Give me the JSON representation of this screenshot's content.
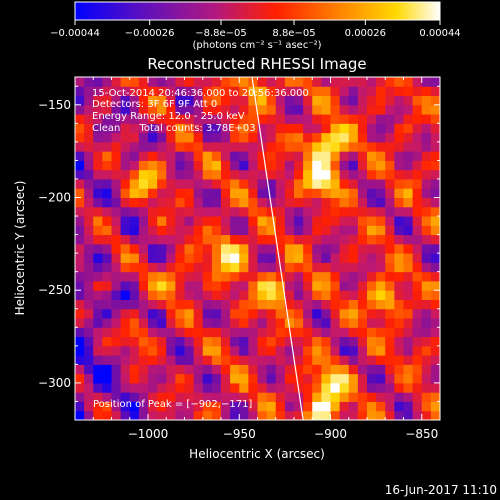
{
  "chart_data": {
    "type": "heatmap",
    "title": "Reconstructed RHESSI Image",
    "xlabel": "Heliocentric X (arcsec)",
    "ylabel": "Heliocentric Y (arcsec)",
    "xlim": [
      -1040,
      -840
    ],
    "ylim": [
      -320,
      -135
    ],
    "x_ticks": [
      -1000,
      -950,
      -900,
      -850
    ],
    "x_tick_labels": [
      "−1000",
      "−950",
      "−900",
      "−850"
    ],
    "y_ticks": [
      -150,
      -200,
      -250,
      -300
    ],
    "y_tick_labels": [
      "−150",
      "−200",
      "−250",
      "−300"
    ],
    "colorbar": {
      "ticks": [
        -0.00044,
        -0.00026,
        -8.8e-05,
        8.8e-05,
        0.00026,
        0.00044
      ],
      "tick_labels": [
        "−0.00044",
        "−0.00026",
        "−8.8e−05",
        "8.8e−05",
        "0.00026",
        "0.00044"
      ],
      "unit": "(photons cm⁻² s⁻¹ asec⁻²)",
      "colors": [
        "#0000ff",
        "#6a0dad",
        "#c01870",
        "#ff2000",
        "#ff8c00",
        "#ffd800",
        "#ffffff"
      ]
    },
    "annotations": {
      "time_range": "15-Oct-2014 20:46:36.000 to 20:56:36.000",
      "detectors": "Detectors: 3F 6F 9F Att 0",
      "energy_range": "Energy Range: 12.0 - 25.0 keV",
      "method": "Clean      Total counts: 3.78E+03",
      "peak_position": "Position of Peak = [−902,−171]",
      "peak_xy": [
        -902,
        -171
      ]
    },
    "limb_line": [
      [
        -943,
        -135
      ],
      [
        -915,
        -320
      ]
    ],
    "hot_spots": [
      {
        "x": -902,
        "y": -171,
        "v": 1.0
      },
      {
        "x": -905,
        "y": -190,
        "v": 0.85
      },
      {
        "x": -955,
        "y": -230,
        "v": 0.85
      },
      {
        "x": -1000,
        "y": -190,
        "v": 0.75
      },
      {
        "x": -870,
        "y": -255,
        "v": 0.8
      },
      {
        "x": -930,
        "y": -250,
        "v": 0.75
      },
      {
        "x": -1005,
        "y": -275,
        "v": 0.7
      },
      {
        "x": -900,
        "y": -300,
        "v": 0.8
      },
      {
        "x": -905,
        "y": -315,
        "v": 0.85
      },
      {
        "x": -940,
        "y": -140,
        "v": 0.7
      },
      {
        "x": -985,
        "y": -245,
        "v": 0.7
      }
    ]
  },
  "footer": {
    "timestamp": "16-Jun-2017 11:10"
  }
}
